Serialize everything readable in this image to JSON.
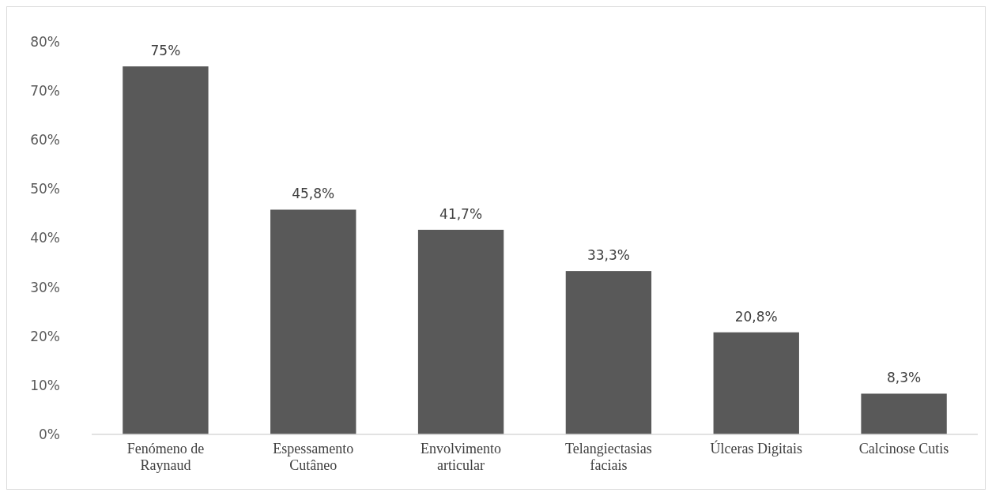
{
  "chart_data": {
    "type": "bar",
    "categories": [
      "Fenómeno de Raynaud",
      "Espessamento Cutâneo",
      "Envolvimento articular",
      "Telangiectasias faciais",
      "Úlceras Digitais",
      "Calcinose Cutis"
    ],
    "values": [
      75,
      45.8,
      41.7,
      33.3,
      20.8,
      8.3
    ],
    "value_labels": [
      "75%",
      "45,8%",
      "41,7%",
      "33,3%",
      "20,8%",
      "8,3%"
    ],
    "color": "#595959",
    "ylim": [
      0,
      80
    ],
    "yticks": [
      {
        "value": 0,
        "label": "0%"
      },
      {
        "value": 10,
        "label": "10%"
      },
      {
        "value": 20,
        "label": "20%"
      },
      {
        "value": 30,
        "label": "30%"
      },
      {
        "value": 40,
        "label": "40%"
      },
      {
        "value": 50,
        "label": "50%"
      },
      {
        "value": 60,
        "label": "60%"
      },
      {
        "value": 70,
        "label": "70%"
      },
      {
        "value": 80,
        "label": "80%"
      }
    ],
    "grid": false
  }
}
